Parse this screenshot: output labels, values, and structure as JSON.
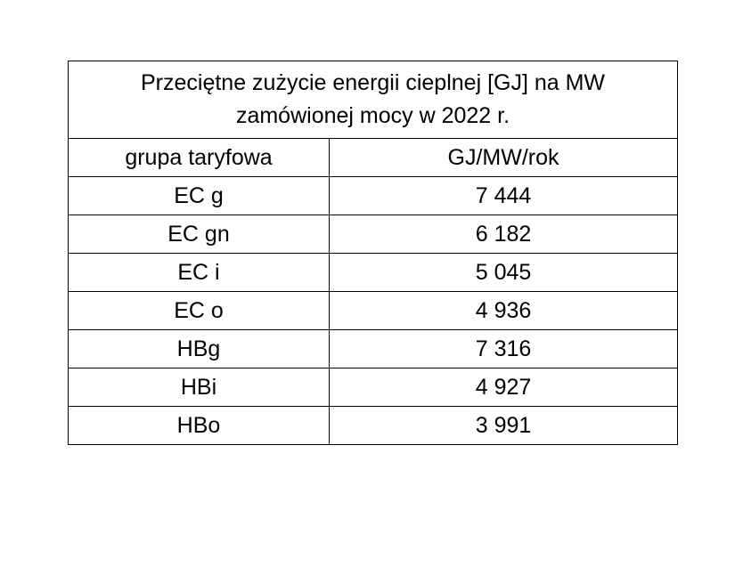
{
  "table": {
    "title": "Przeciętne zużycie energii cieplnej [GJ] na MW zamówionej mocy w 2022 r.",
    "header": [
      "grupa taryfowa",
      "GJ/MW/rok"
    ],
    "rows": [
      [
        "EC g",
        "7 444"
      ],
      [
        "EC gn",
        "6 182"
      ],
      [
        "EC i",
        "5 045"
      ],
      [
        "EC o",
        "4 936"
      ],
      [
        "HBg",
        "7 316"
      ],
      [
        "HBi",
        "4 927"
      ],
      [
        "HBo",
        "3 991"
      ]
    ]
  }
}
